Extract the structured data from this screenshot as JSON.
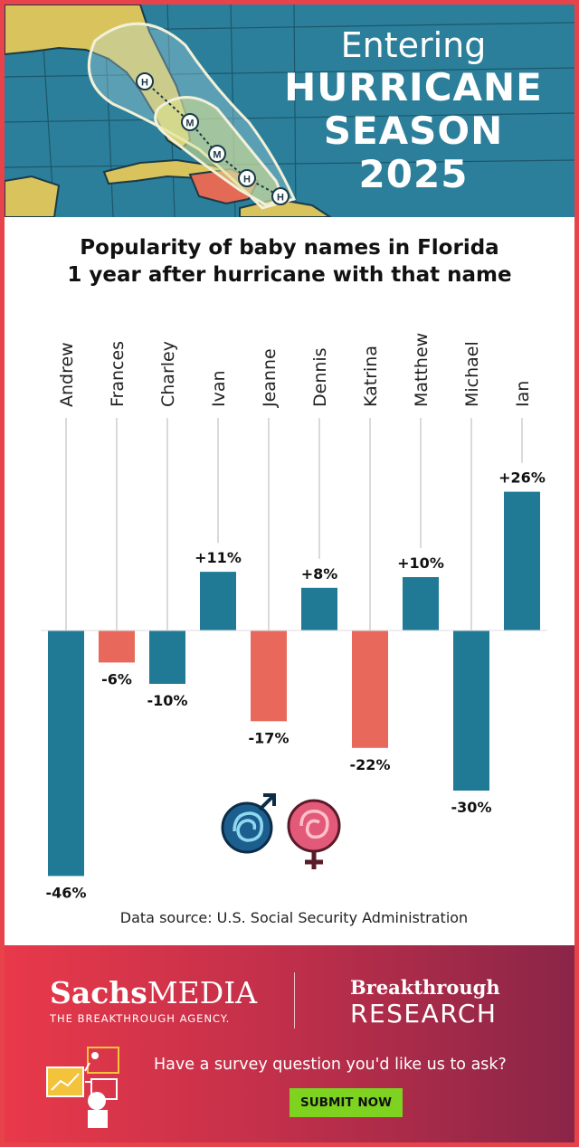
{
  "header": {
    "line1": "Entering",
    "line2": "HURRICANE",
    "line3": "SEASON",
    "line4": "2025",
    "marker_letters": [
      "H",
      "M",
      "M",
      "H",
      "H"
    ]
  },
  "chart_title_line1": "Popularity of baby names in Florida",
  "chart_title_line2": "1 year after hurricane with that name",
  "chart_data": {
    "type": "bar",
    "categories": [
      "Andrew",
      "Frances",
      "Charley",
      "Ivan",
      "Jeanne",
      "Dennis",
      "Katrina",
      "Matthew",
      "Michael",
      "Ian"
    ],
    "values": [
      -46,
      -6,
      -10,
      11,
      -17,
      8,
      -22,
      10,
      -30,
      26
    ],
    "value_labels": [
      "-46%",
      "-6%",
      "-10%",
      "+11%",
      "-17%",
      "+8%",
      "-22%",
      "+10%",
      "-30%",
      "+26%"
    ],
    "gender": [
      "male",
      "female",
      "male",
      "male",
      "female",
      "male",
      "female",
      "male",
      "male",
      "male"
    ],
    "unit": "%",
    "colors": {
      "male": "#207a96",
      "female": "#e8695b"
    }
  },
  "legend_icons": [
    "male-symbol-icon",
    "female-symbol-icon"
  ],
  "source": "Data source: U.S. Social Security Administration",
  "footer": {
    "brand1_bold": "Sachs",
    "brand1_rest": "MEDIA",
    "brand1_tagline": "THE BREAKTHROUGH AGENCY.",
    "brand2_line1": "Breakthrough",
    "brand2_line2": "RESEARCH",
    "survey_question": "Have a survey question you'd like us to ask?",
    "submit_label": "SUBMIT NOW",
    "submit_color": "#7ed321"
  }
}
